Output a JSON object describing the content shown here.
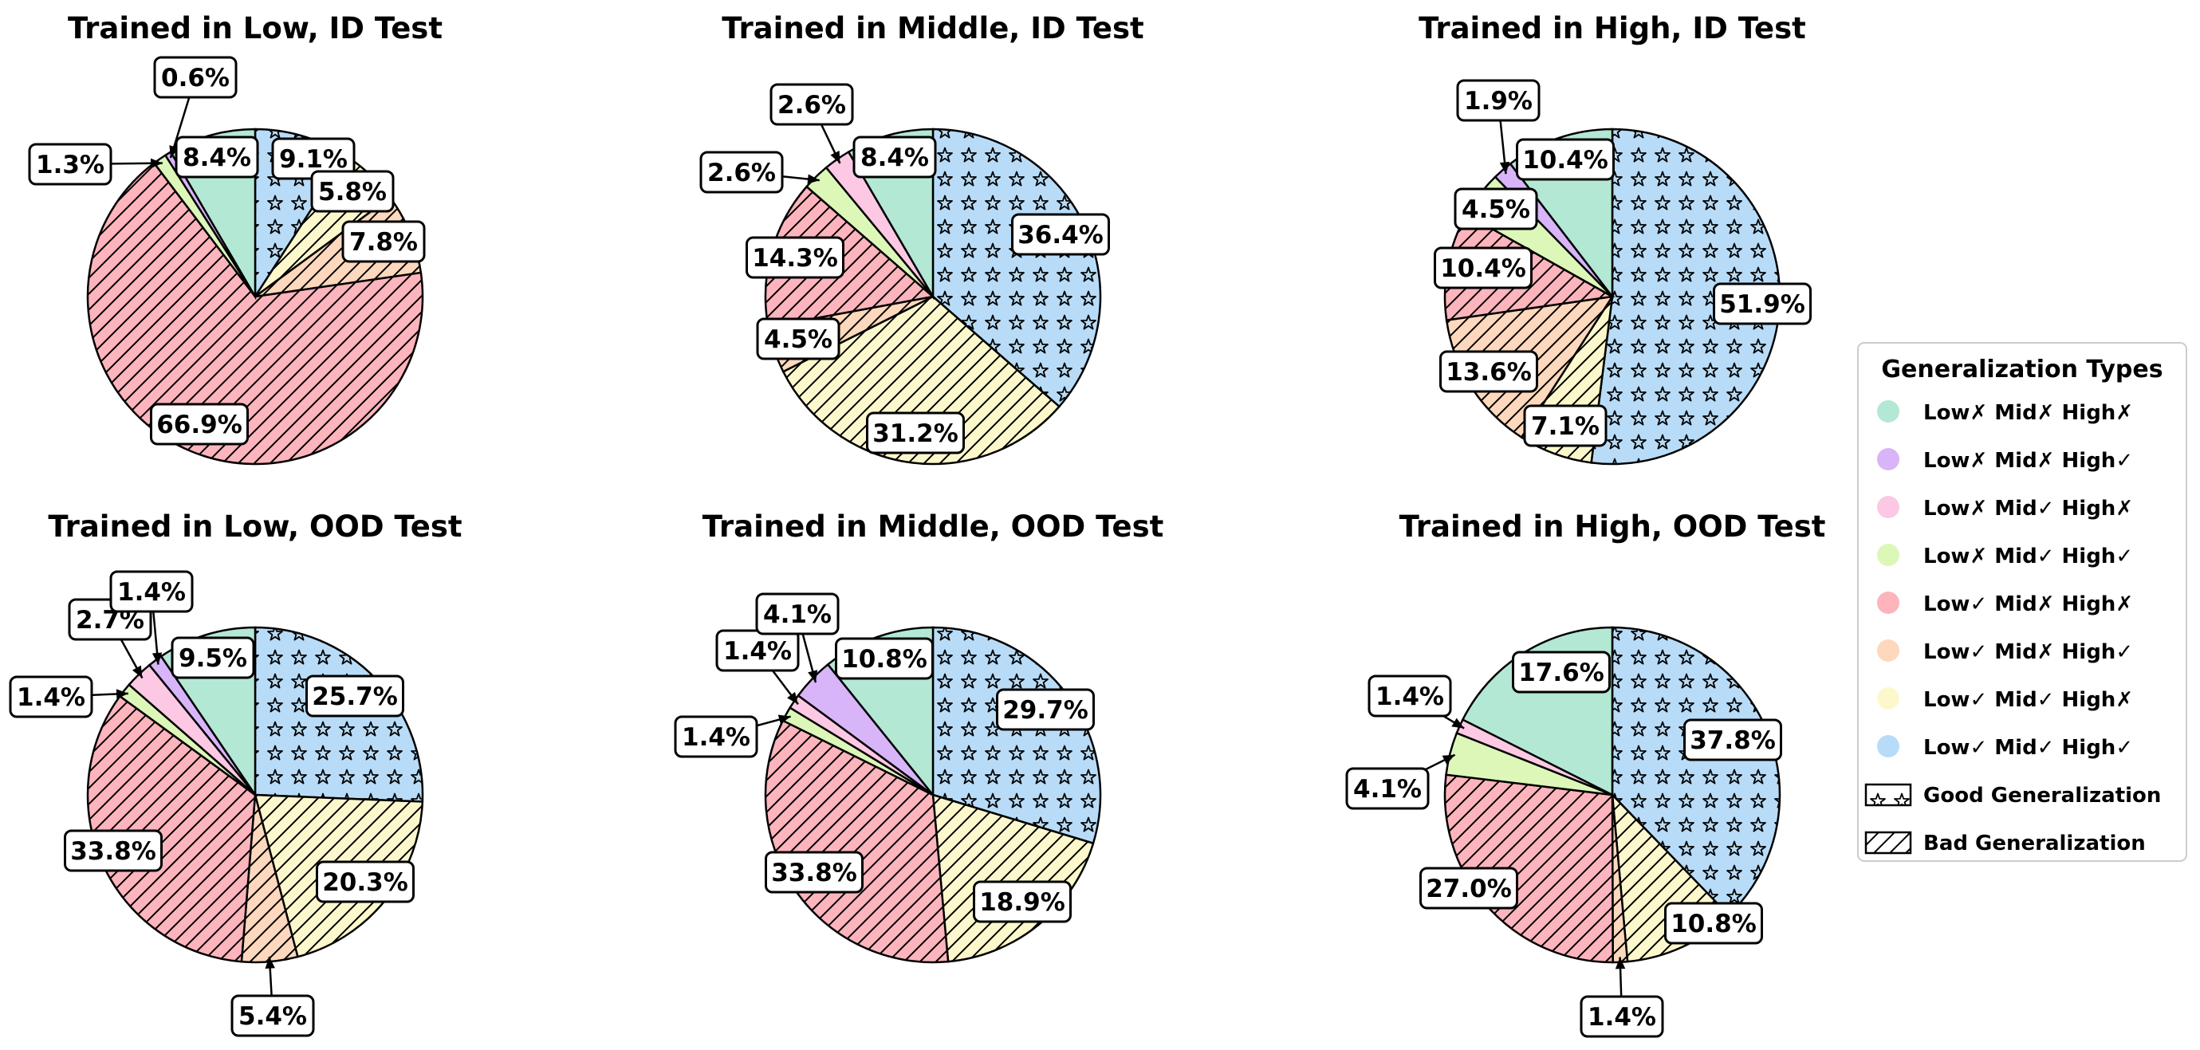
{
  "category_order": [
    "lxmxhx",
    "lxmxhv",
    "lxmvhx",
    "lxmvhv",
    "lvmxhx",
    "lvmxhv",
    "lvmvhx",
    "lvmvhv"
  ],
  "colors": {
    "lxmxhx": "#b3e8d4",
    "lxmxhv": "#d8b4f8",
    "lxmvhx": "#fdc8e4",
    "lxmvhv": "#dcf7b8",
    "lvmxhx": "#fdb4bc",
    "lvmxhv": "#fdd8bc",
    "lvmvhx": "#fdf8cc",
    "lvmvhv": "#b8dcf8"
  },
  "patterns": {
    "good": "star",
    "bad": "hatch",
    "good_categories": [
      "lvmvhv"
    ],
    "bad_categories": [
      "lvmxhx",
      "lvmxhv",
      "lvmvhx"
    ]
  },
  "chart_data": [
    {
      "type": "pie",
      "title": "Trained in Low, ID Test",
      "slices": [
        {
          "category": "lvmvhv",
          "value": 9.1,
          "label": "9.1%"
        },
        {
          "category": "lvmvhx",
          "value": 5.8,
          "label": "5.8%"
        },
        {
          "category": "lvmxhv",
          "value": 7.8,
          "label": "7.8%"
        },
        {
          "category": "lvmxhx",
          "value": 66.9,
          "label": "66.9%"
        },
        {
          "category": "lxmvhv",
          "value": 1.3,
          "label": "1.3%"
        },
        {
          "category": "lxmxhv",
          "value": 0.6,
          "label": "0.6%"
        },
        {
          "category": "lxmxhx",
          "value": 8.4,
          "label": "8.4%"
        }
      ]
    },
    {
      "type": "pie",
      "title": "Trained in Middle, ID Test",
      "slices": [
        {
          "category": "lvmvhv",
          "value": 36.4,
          "label": "36.4%"
        },
        {
          "category": "lvmvhx",
          "value": 31.2,
          "label": "31.2%"
        },
        {
          "category": "lvmxhv",
          "value": 4.5,
          "label": "4.5%"
        },
        {
          "category": "lvmxhx",
          "value": 14.3,
          "label": "14.3%"
        },
        {
          "category": "lxmvhv",
          "value": 2.6,
          "label": "2.6%"
        },
        {
          "category": "lxmvhx",
          "value": 2.6,
          "label": "2.6%"
        },
        {
          "category": "lxmxhx",
          "value": 8.4,
          "label": "8.4%"
        }
      ]
    },
    {
      "type": "pie",
      "title": "Trained in High, ID Test",
      "slices": [
        {
          "category": "lvmvhv",
          "value": 51.9,
          "label": "51.9%"
        },
        {
          "category": "lvmvhx",
          "value": 7.1,
          "label": "7.1%"
        },
        {
          "category": "lvmxhv",
          "value": 13.6,
          "label": "13.6%"
        },
        {
          "category": "lvmxhx",
          "value": 10.4,
          "label": "10.4%"
        },
        {
          "category": "lxmvhv",
          "value": 4.5,
          "label": "4.5%"
        },
        {
          "category": "lxmxhv",
          "value": 1.9,
          "label": "1.9%"
        },
        {
          "category": "lxmxhx",
          "value": 10.4,
          "label": "10.4%"
        }
      ]
    },
    {
      "type": "pie",
      "title": "Trained in Low, OOD Test",
      "slices": [
        {
          "category": "lvmvhv",
          "value": 25.7,
          "label": "25.7%"
        },
        {
          "category": "lvmvhx",
          "value": 20.3,
          "label": "20.3%"
        },
        {
          "category": "lvmxhv",
          "value": 5.4,
          "label": "5.4%"
        },
        {
          "category": "lvmxhx",
          "value": 33.8,
          "label": "33.8%"
        },
        {
          "category": "lxmvhv",
          "value": 1.4,
          "label": "1.4%"
        },
        {
          "category": "lxmvhx",
          "value": 2.7,
          "label": "2.7%"
        },
        {
          "category": "lxmxhv",
          "value": 1.4,
          "label": "1.4%"
        },
        {
          "category": "lxmxhx",
          "value": 9.5,
          "label": "9.5%"
        }
      ]
    },
    {
      "type": "pie",
      "title": "Trained in Middle, OOD Test",
      "slices": [
        {
          "category": "lvmvhv",
          "value": 29.7,
          "label": "29.7%"
        },
        {
          "category": "lvmvhx",
          "value": 18.9,
          "label": "18.9%"
        },
        {
          "category": "lvmxhx",
          "value": 33.8,
          "label": "33.8%"
        },
        {
          "category": "lxmvhv",
          "value": 1.4,
          "label": "1.4%"
        },
        {
          "category": "lxmvhx",
          "value": 1.4,
          "label": "1.4%"
        },
        {
          "category": "lxmxhv",
          "value": 4.1,
          "label": "4.1%"
        },
        {
          "category": "lxmxhx",
          "value": 10.8,
          "label": "10.8%"
        }
      ]
    },
    {
      "type": "pie",
      "title": "Trained in High, OOD Test",
      "slices": [
        {
          "category": "lvmvhv",
          "value": 37.8,
          "label": "37.8%"
        },
        {
          "category": "lvmvhx",
          "value": 10.8,
          "label": "10.8%"
        },
        {
          "category": "lvmxhv",
          "value": 1.4,
          "label": "1.4%"
        },
        {
          "category": "lvmxhx",
          "value": 27.0,
          "label": "27.0%"
        },
        {
          "category": "lxmvhv",
          "value": 4.1,
          "label": "4.1%"
        },
        {
          "category": "lxmvhx",
          "value": 1.4,
          "label": "1.4%"
        },
        {
          "category": "lxmxhx",
          "value": 17.6,
          "label": "17.6%"
        }
      ]
    }
  ],
  "legend": {
    "title": "Generalization Types",
    "placement": "right",
    "items": [
      {
        "category": "lxmxhx",
        "label": "Low✗ Mid✗ High✗",
        "swatch": "dot"
      },
      {
        "category": "lxmxhv",
        "label": "Low✗ Mid✗ High✓",
        "swatch": "dot"
      },
      {
        "category": "lxmvhx",
        "label": "Low✗ Mid✓ High✗",
        "swatch": "dot"
      },
      {
        "category": "lxmvhv",
        "label": "Low✗ Mid✓ High✓",
        "swatch": "dot"
      },
      {
        "category": "lvmxhx",
        "label": "Low✓ Mid✗ High✗",
        "swatch": "dot"
      },
      {
        "category": "lvmxhv",
        "label": "Low✓ Mid✗ High✓",
        "swatch": "dot"
      },
      {
        "category": "lvmvhx",
        "label": "Low✓ Mid✓ High✗",
        "swatch": "dot"
      },
      {
        "category": "lvmvhv",
        "label": "Low✓ Mid✓ High✓",
        "swatch": "dot"
      },
      {
        "category": "good",
        "label": "Good Generalization",
        "swatch": "star"
      },
      {
        "category": "bad",
        "label": "Bad Generalization",
        "swatch": "hatch"
      }
    ]
  }
}
